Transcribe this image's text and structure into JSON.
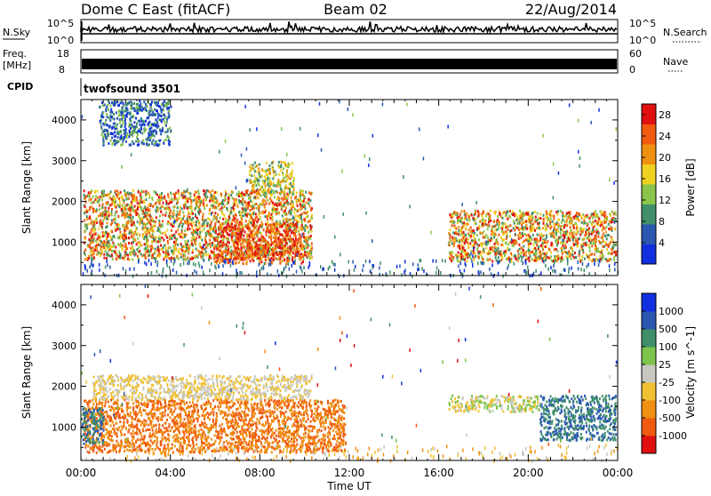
{
  "header": {
    "station": "Dome C East (fitACF)",
    "beam": "Beam 02",
    "date": "22/Aug/2014"
  },
  "top_panels": {
    "nsky_label": "N.Sky",
    "nsky_ticks": [
      "10^5",
      "10^0"
    ],
    "nsearch_label": "N.Search",
    "nsearch_ticks": [
      "10^5",
      "10^0"
    ],
    "freq_label_1": "Freq.",
    "freq_label_2": "[MHz]",
    "freq_ticks": [
      "18",
      "8"
    ],
    "nave_label": "Nave",
    "nave_ticks": [
      "60",
      "0"
    ],
    "cpid_label": "CPID",
    "cpid_value": "twofsound 3501"
  },
  "colors": {
    "power": [
      "#1030e0",
      "#2a58b0",
      "#3f8f6a",
      "#8ac44a",
      "#f0d020",
      "#f09010",
      "#f05a10",
      "#e01010"
    ],
    "velocity": [
      "#e01010",
      "#f05a10",
      "#f09010",
      "#f0c030",
      "#c8c8c0",
      "#7cc44a",
      "#3f8f6a",
      "#2a58b0",
      "#1030e0"
    ]
  },
  "chart_data": [
    {
      "type": "heatmap",
      "name": "power",
      "xlabel": "",
      "ylabel": "Slant Range [km]",
      "x_ticks": [
        "00:00",
        "04:00",
        "08:00",
        "12:00",
        "16:00",
        "20:00",
        "00:00"
      ],
      "xlim": [
        0,
        24
      ],
      "ylim": [
        180,
        4500
      ],
      "y_ticks": [
        1000,
        2000,
        3000,
        4000
      ],
      "colorbar_label": "Power [dB]",
      "colorbar_ticks": [
        "4",
        "8",
        "12",
        "16",
        "20",
        "24",
        "28"
      ],
      "colorbar_range": [
        0,
        30
      ],
      "echo_regions": [
        {
          "t": [
            0.1,
            10.3
          ],
          "r": [
            600,
            2300
          ],
          "level": "medium-high"
        },
        {
          "t": [
            5.9,
            9.9
          ],
          "r": [
            500,
            1500
          ],
          "level": "high"
        },
        {
          "t": [
            0.8,
            4.0
          ],
          "r": [
            3400,
            4500
          ],
          "level": "low"
        },
        {
          "t": [
            7.5,
            9.5
          ],
          "r": [
            2200,
            3000
          ],
          "level": "medium"
        },
        {
          "t": [
            16.4,
            23.9
          ],
          "r": [
            550,
            1800
          ],
          "level": "medium-high"
        }
      ]
    },
    {
      "type": "heatmap",
      "name": "velocity",
      "xlabel": "Time UT",
      "ylabel": "Slant Range [km]",
      "x_ticks": [
        "00:00",
        "04:00",
        "08:00",
        "12:00",
        "16:00",
        "20:00",
        "00:00"
      ],
      "xlim": [
        0,
        24
      ],
      "ylim": [
        180,
        4500
      ],
      "y_ticks": [
        1000,
        2000,
        3000,
        4000
      ],
      "colorbar_label": "Velocity [m s^-1]",
      "colorbar_ticks": [
        "1000",
        "500",
        "100",
        "25",
        "-25",
        "-100",
        "-500",
        "-1000"
      ],
      "echo_regions": [
        {
          "t": [
            0.1,
            11.8
          ],
          "r": [
            400,
            1700
          ],
          "velocity": "-100 to -500"
        },
        {
          "t": [
            0.5,
            10.3
          ],
          "r": [
            1700,
            2300
          ],
          "velocity": "-25 to 25"
        },
        {
          "t": [
            0.0,
            1.0
          ],
          "r": [
            600,
            1500
          ],
          "velocity": "100 to 500"
        },
        {
          "t": [
            16.4,
            20.5
          ],
          "r": [
            1400,
            1800
          ],
          "velocity": "-25 to 100"
        },
        {
          "t": [
            20.5,
            23.9
          ],
          "r": [
            700,
            1800
          ],
          "velocity": "100 to 500"
        }
      ]
    }
  ]
}
